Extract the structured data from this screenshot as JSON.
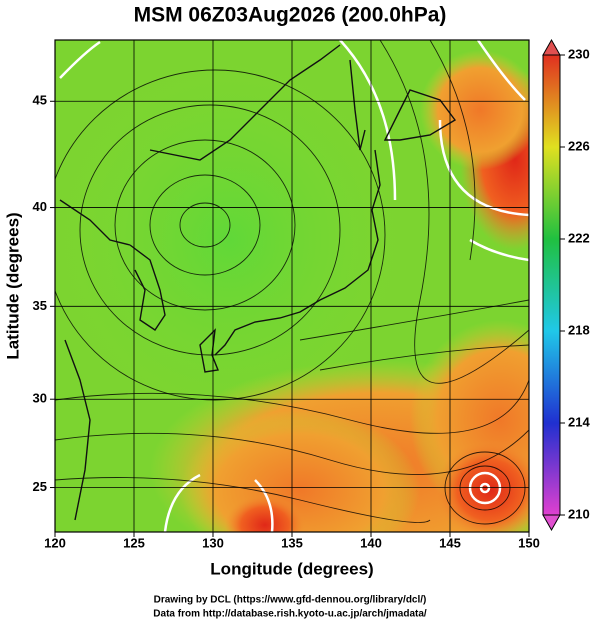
{
  "map": {
    "title": "MSM 06Z03Aug2026 (200.0hPa)",
    "xlabel": "Longitude (degrees)",
    "ylabel": "Latitude  (degrees)",
    "xlim": [
      120,
      150
    ],
    "ylim": [
      22.4,
      47.7
    ],
    "xticks": [
      120,
      125,
      130,
      135,
      140,
      145,
      150
    ],
    "yticks": [
      25,
      30,
      35,
      40,
      45
    ],
    "colorbar": {
      "lim": [
        210,
        230
      ],
      "ticks": [
        210,
        214,
        218,
        222,
        226,
        230
      ]
    }
  },
  "credits": [
    "Drawing by DCL (https://www.gfd-dennou.org/library/dcl/)",
    "Data from http://database.rish.kyoto-u.ac.jp/arch/jmadata/"
  ]
}
